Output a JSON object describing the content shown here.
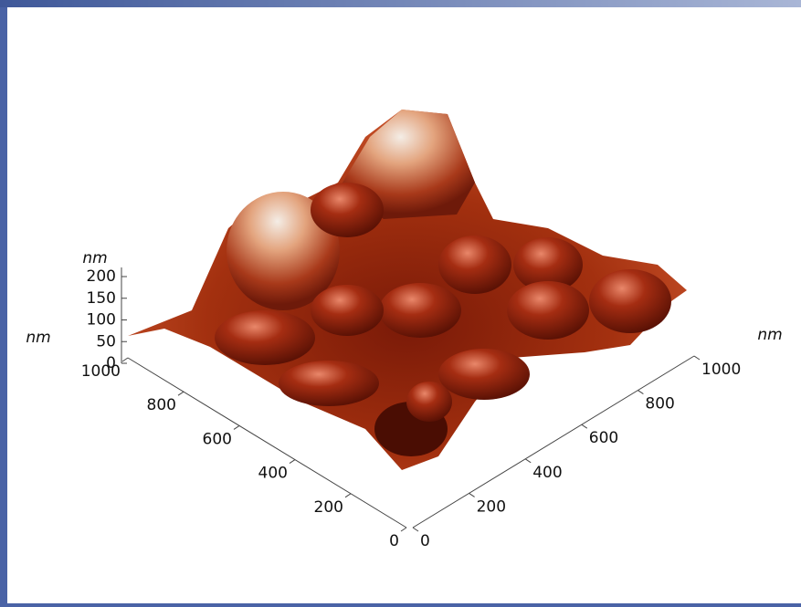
{
  "z_axis": {
    "unit": "nm",
    "ticks": [
      0,
      50,
      100,
      150,
      200
    ]
  },
  "left_axis": {
    "unit": "nm",
    "ticks": [
      0,
      200,
      400,
      600,
      800,
      1000
    ]
  },
  "right_axis": {
    "unit": "nm",
    "ticks": [
      0,
      200,
      400,
      600,
      800,
      1000
    ]
  }
}
